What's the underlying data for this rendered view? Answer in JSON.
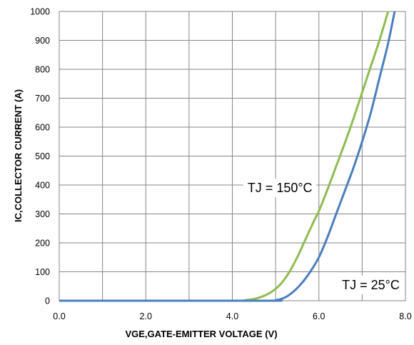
{
  "chart_data": {
    "type": "line",
    "xlabel": "VGE,GATE-EMITTER VOLTAGE (V)",
    "ylabel": "IC,COLLECTOR CURRENT (A)",
    "xlim": [
      0,
      8
    ],
    "ylim": [
      0,
      1000
    ],
    "x_ticks": [
      "0.0",
      "2.0",
      "4.0",
      "6.0",
      "8.0"
    ],
    "y_ticks": [
      "0",
      "100",
      "200",
      "300",
      "400",
      "500",
      "600",
      "700",
      "800",
      "900",
      "1000"
    ],
    "grid": true,
    "series": [
      {
        "color": "#8fbb52",
        "x": [
          0,
          4.0,
          4.3,
          4.5,
          4.7,
          4.9,
          5.1,
          5.3,
          5.5,
          5.7,
          5.9,
          6.0,
          6.2,
          6.4,
          6.6,
          6.8,
          7.0,
          7.2,
          7.4,
          7.6
        ],
        "y": [
          0,
          0,
          2,
          6,
          15,
          30,
          55,
          95,
          150,
          215,
          280,
          310,
          385,
          465,
          545,
          630,
          720,
          810,
          900,
          1000
        ]
      },
      {
        "color": "#4a7ebb",
        "x": [
          0,
          4.7,
          5.0,
          5.2,
          5.4,
          5.6,
          5.8,
          6.0,
          6.2,
          6.4,
          6.6,
          6.8,
          7.0,
          7.2,
          7.4,
          7.6,
          7.75
        ],
        "y": [
          0,
          0,
          2,
          10,
          30,
          60,
          100,
          150,
          220,
          300,
          380,
          460,
          550,
          650,
          770,
          890,
          1000
        ]
      }
    ],
    "annotations": [
      {
        "text": "TJ = 150°C",
        "x": 5.1,
        "y": 375
      },
      {
        "text": "TJ = 25°C",
        "x": 7.2,
        "y": 40
      }
    ]
  }
}
